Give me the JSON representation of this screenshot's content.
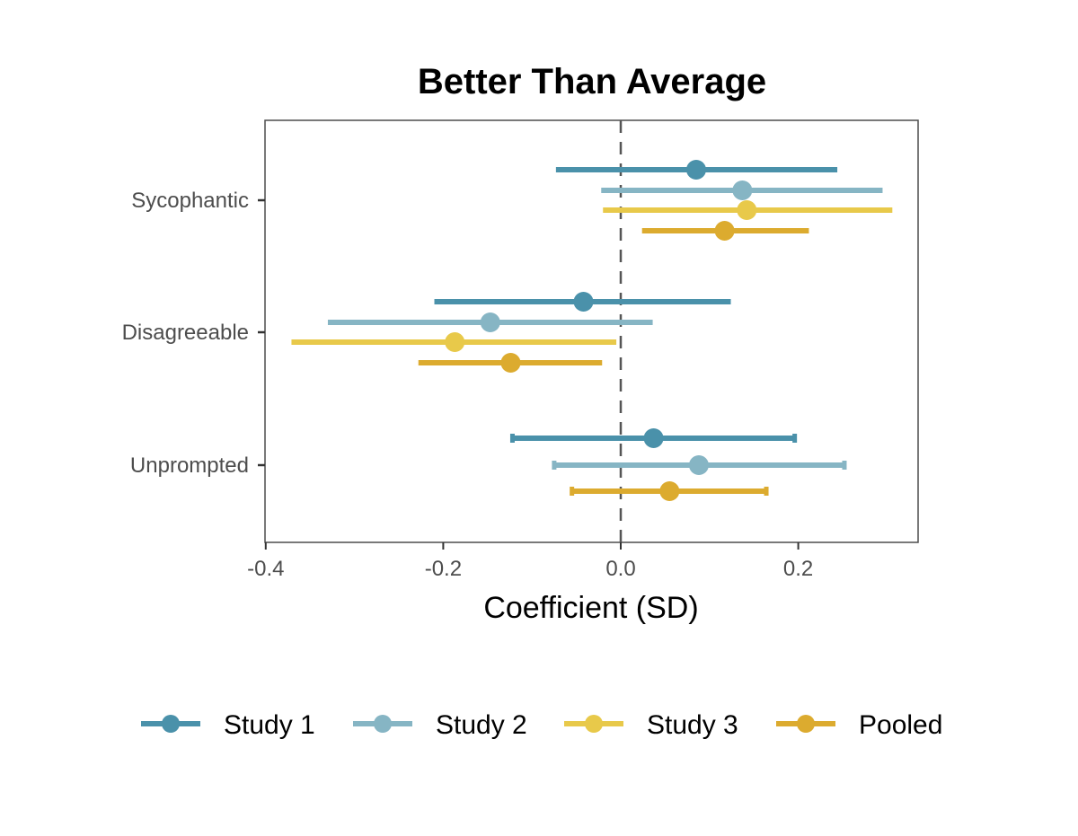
{
  "chart_data": {
    "type": "scatter",
    "subtype": "coefficient-plot",
    "title": "Better Than Average",
    "xlabel": "Coefficient (SD)",
    "ylabel": "",
    "xlim": [
      -0.4,
      0.335
    ],
    "xticks": [
      -0.4,
      -0.2,
      0.0,
      0.2
    ],
    "xtick_labels": [
      "-0.4",
      "-0.2",
      "0.0",
      "0.2"
    ],
    "reference_line": {
      "x": 0.0,
      "style": "dashed"
    },
    "categories": [
      "Sycophantic",
      "Disagreeable",
      "Unprompted"
    ],
    "grid": false,
    "legend_position": "bottom",
    "series": [
      {
        "name": "Study 1",
        "color": "#4a91aa",
        "points": [
          {
            "category": "Sycophantic",
            "estimate": 0.085,
            "lower": -0.073,
            "upper": 0.244
          },
          {
            "category": "Disagreeable",
            "estimate": -0.042,
            "lower": -0.21,
            "upper": 0.124
          },
          {
            "category": "Unprompted",
            "estimate": 0.037,
            "lower": -0.122,
            "upper": 0.196
          }
        ]
      },
      {
        "name": "Study 2",
        "color": "#86b5c4",
        "points": [
          {
            "category": "Sycophantic",
            "estimate": 0.137,
            "lower": -0.022,
            "upper": 0.295
          },
          {
            "category": "Disagreeable",
            "estimate": -0.147,
            "lower": -0.33,
            "upper": 0.036
          },
          {
            "category": "Unprompted",
            "estimate": 0.088,
            "lower": -0.075,
            "upper": 0.252
          }
        ]
      },
      {
        "name": "Study 3",
        "color": "#e8c94a",
        "points": [
          {
            "category": "Sycophantic",
            "estimate": 0.142,
            "lower": -0.02,
            "upper": 0.306
          },
          {
            "category": "Disagreeable",
            "estimate": -0.187,
            "lower": -0.371,
            "upper": -0.005
          }
        ]
      },
      {
        "name": "Pooled",
        "color": "#dcab2f",
        "points": [
          {
            "category": "Sycophantic",
            "estimate": 0.117,
            "lower": 0.024,
            "upper": 0.212
          },
          {
            "category": "Disagreeable",
            "estimate": -0.124,
            "lower": -0.228,
            "upper": -0.021
          },
          {
            "category": "Unprompted",
            "estimate": 0.055,
            "lower": -0.055,
            "upper": 0.164
          }
        ]
      }
    ]
  }
}
